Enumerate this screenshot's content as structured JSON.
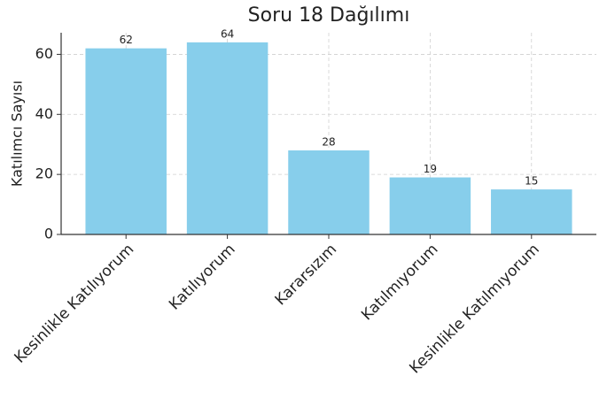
{
  "chart_data": {
    "type": "bar",
    "title": "Soru 18 Dağılımı",
    "y_label": "Katılımcı Sayısı",
    "categories": [
      "Kesinlikle Katılıyorum",
      "Katılıyorum",
      "Kararsızım",
      "Katılmıyorum",
      "Kesinlikle Katılmıyorum"
    ],
    "values": [
      62,
      64,
      28,
      19,
      15
    ],
    "color": "#87ceeb",
    "ylim": [
      0,
      67.2
    ],
    "yticks": [
      0,
      20,
      40,
      60
    ],
    "grid": true
  }
}
